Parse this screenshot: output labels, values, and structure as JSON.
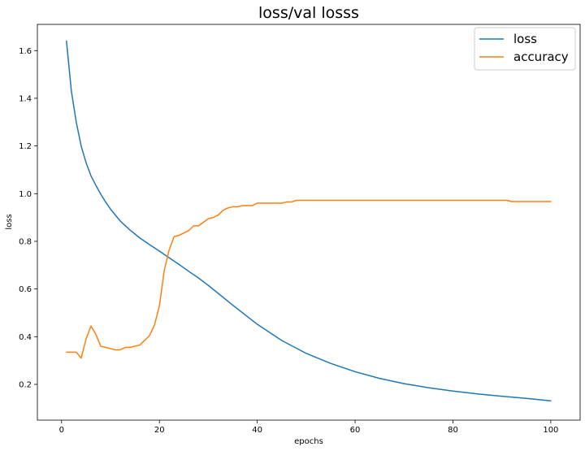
{
  "chart_data": {
    "type": "line",
    "title": "loss/val losss",
    "xlabel": "epochs",
    "ylabel": "loss",
    "xlim": [
      -4.95,
      106.0
    ],
    "ylim": [
      0.05,
      1.71
    ],
    "xticks": [
      0,
      20,
      40,
      60,
      80,
      100
    ],
    "yticks": [
      0.2,
      0.4,
      0.6,
      0.8,
      1.0,
      1.2,
      1.4,
      1.6
    ],
    "ytick_labels": [
      "0.2",
      "0.4",
      "0.6",
      "0.8",
      "1.0",
      "1.2",
      "1.4",
      "1.6"
    ],
    "grid": false,
    "legend_position": "top-right",
    "series": [
      {
        "name": "loss",
        "color": "#1f77b4",
        "x": [
          1,
          2,
          3,
          4,
          5,
          6,
          7,
          8,
          9,
          10,
          12,
          14,
          16,
          18,
          20,
          22,
          24,
          26,
          28,
          30,
          35,
          40,
          45,
          50,
          55,
          60,
          65,
          70,
          75,
          80,
          85,
          90,
          95,
          100
        ],
        "values": [
          1.64,
          1.43,
          1.3,
          1.2,
          1.13,
          1.075,
          1.035,
          0.998,
          0.965,
          0.935,
          0.885,
          0.847,
          0.814,
          0.786,
          0.759,
          0.731,
          0.703,
          0.674,
          0.646,
          0.615,
          0.532,
          0.452,
          0.384,
          0.33,
          0.288,
          0.253,
          0.225,
          0.203,
          0.186,
          0.172,
          0.16,
          0.15,
          0.141,
          0.131
        ]
      },
      {
        "name": "accuracy",
        "color": "#ff7f0e",
        "x": [
          1,
          2,
          3,
          4,
          5,
          6,
          7,
          8,
          9,
          10,
          11,
          12,
          13,
          14,
          15,
          16,
          17,
          18,
          19,
          20,
          21,
          22,
          23,
          24,
          25,
          26,
          27,
          28,
          29,
          30,
          31,
          32,
          33,
          34,
          35,
          36,
          37,
          38,
          39,
          40,
          41,
          42,
          43,
          44,
          45,
          46,
          47,
          48,
          50,
          55,
          60,
          65,
          70,
          75,
          80,
          85,
          90,
          91,
          92,
          95,
          100
        ],
        "values": [
          0.335,
          0.335,
          0.335,
          0.31,
          0.39,
          0.445,
          0.41,
          0.36,
          0.355,
          0.35,
          0.345,
          0.345,
          0.355,
          0.355,
          0.36,
          0.365,
          0.385,
          0.405,
          0.45,
          0.53,
          0.68,
          0.765,
          0.82,
          0.825,
          0.835,
          0.845,
          0.865,
          0.865,
          0.88,
          0.895,
          0.9,
          0.91,
          0.93,
          0.94,
          0.945,
          0.945,
          0.95,
          0.95,
          0.95,
          0.96,
          0.96,
          0.96,
          0.96,
          0.96,
          0.96,
          0.965,
          0.965,
          0.972,
          0.972,
          0.972,
          0.972,
          0.972,
          0.972,
          0.972,
          0.972,
          0.972,
          0.972,
          0.972,
          0.967,
          0.967,
          0.967
        ]
      }
    ]
  }
}
